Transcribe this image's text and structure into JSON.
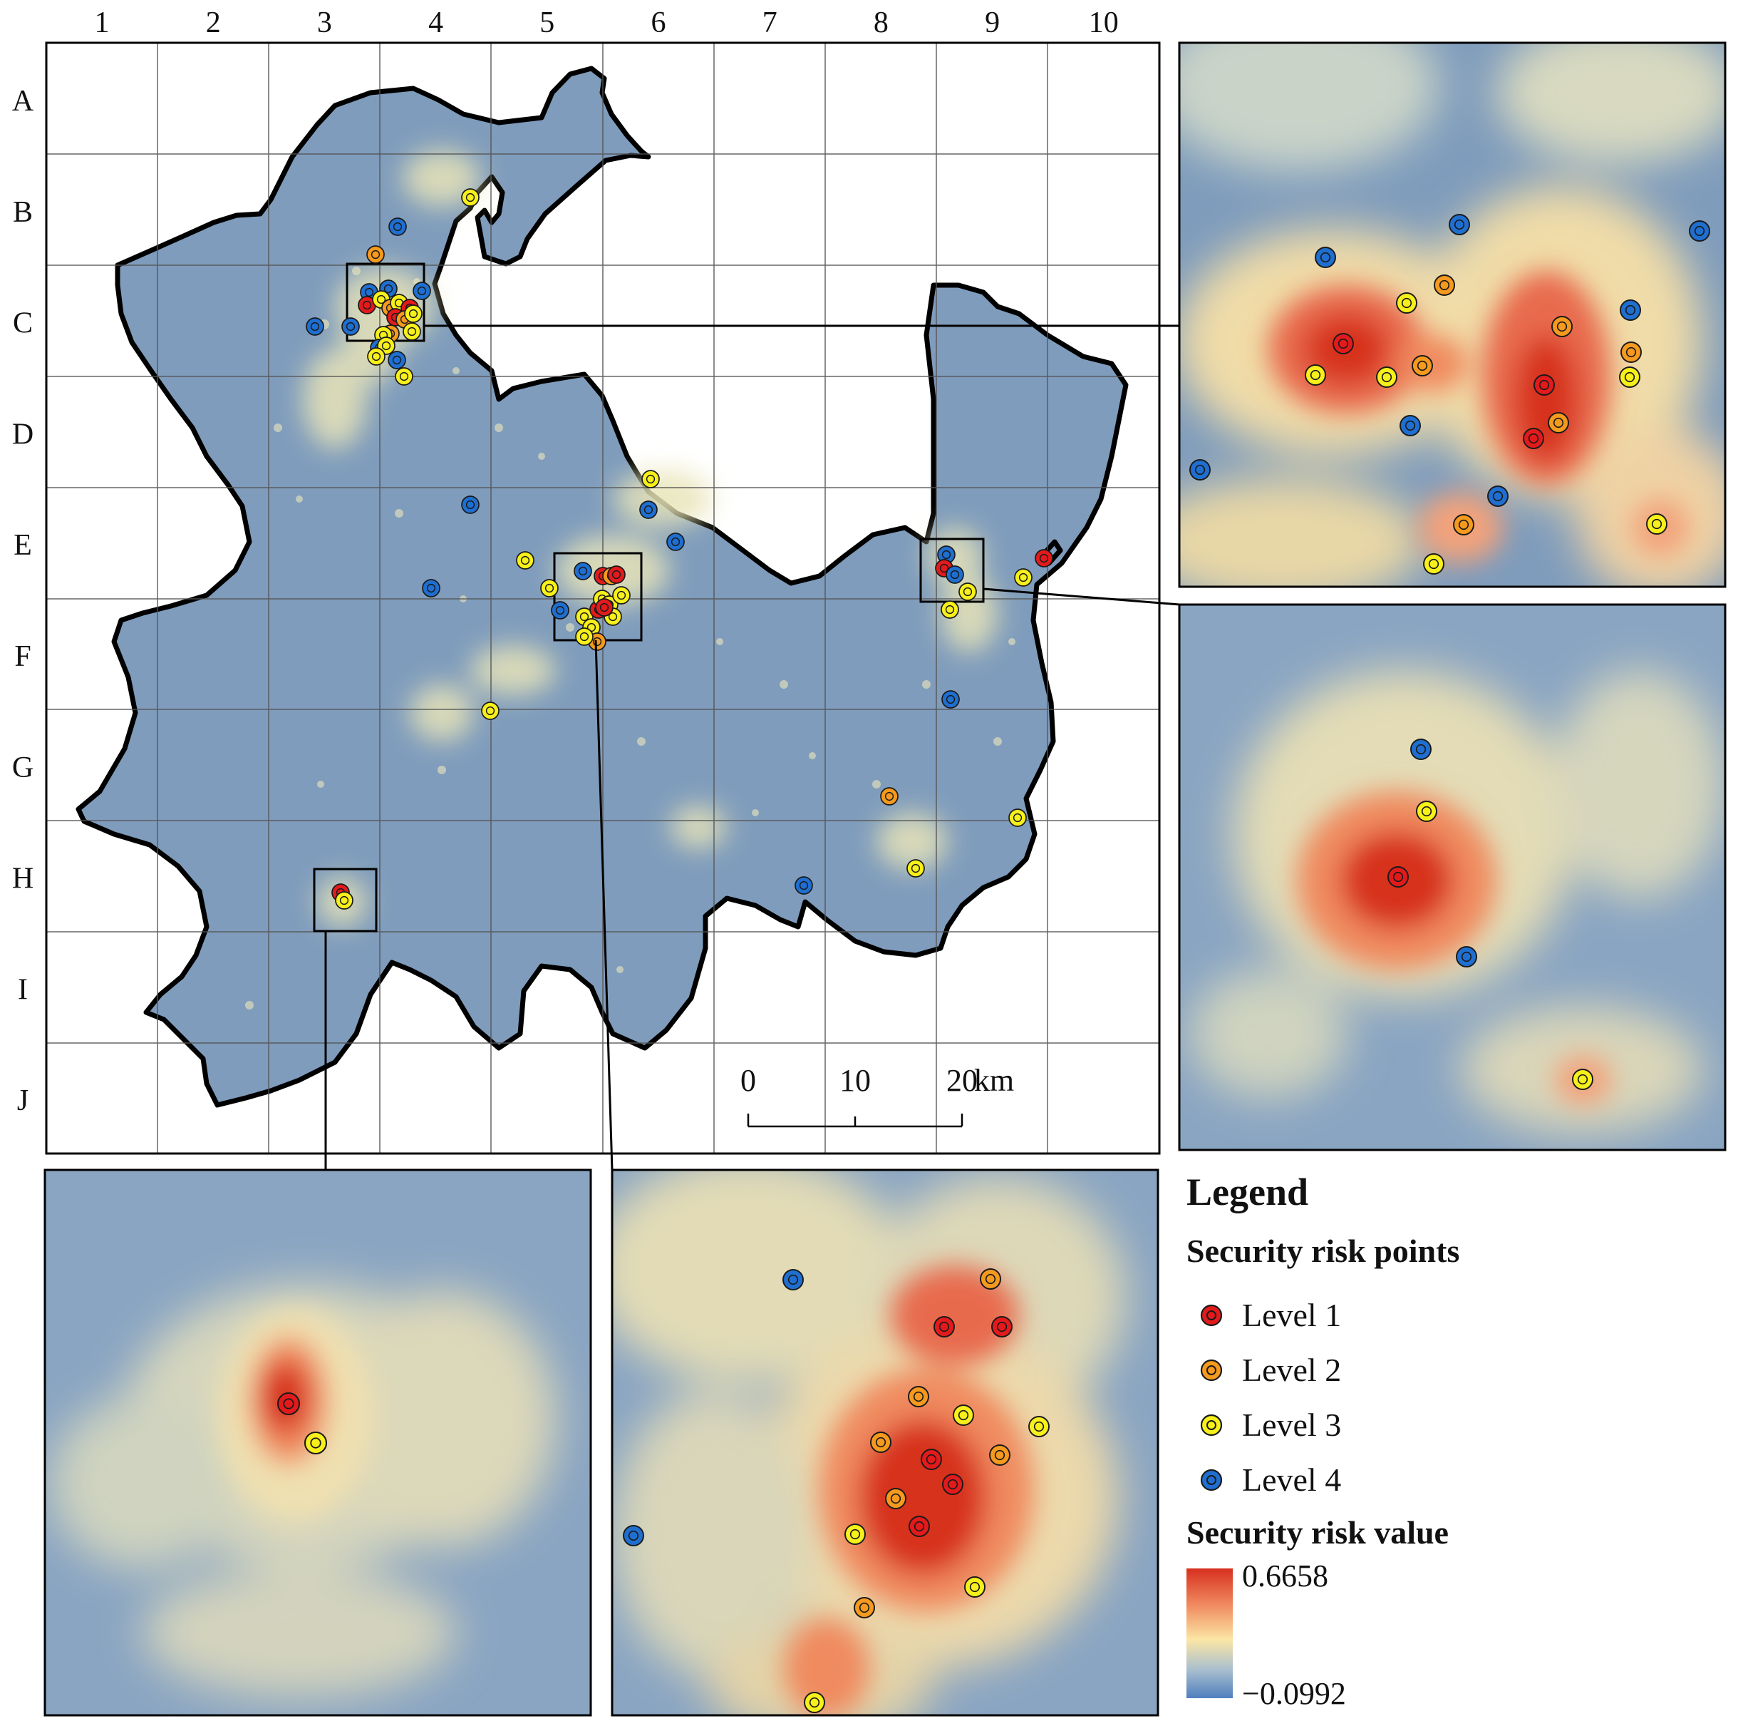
{
  "grid": {
    "columns": [
      "1",
      "2",
      "3",
      "4",
      "5",
      "6",
      "7",
      "8",
      "9",
      "10"
    ],
    "rows": [
      "A",
      "B",
      "C",
      "D",
      "E",
      "F",
      "G",
      "H",
      "I",
      "J"
    ]
  },
  "scale_bar": {
    "ticks": [
      "0",
      "10",
      "20"
    ],
    "unit": "km"
  },
  "legend": {
    "title": "Legend",
    "points_heading": "Security risk points",
    "levels": [
      {
        "label": "Level 1",
        "color": "#e31a1c"
      },
      {
        "label": "Level 2",
        "color": "#f59a1e"
      },
      {
        "label": "Level 3",
        "color": "#f7f01a"
      },
      {
        "label": "Level 4",
        "color": "#1f6fd1"
      }
    ],
    "value_heading": "Security risk value",
    "value_max": "0.6658",
    "value_min": "−0.0992",
    "ramp_colors": [
      "#d7301f",
      "#f08a5f",
      "#fbe6a6",
      "#a9bfcf",
      "#4f7fbe"
    ]
  },
  "colors": {
    "background_raster": "#7f9cbc",
    "urban_low": "#e8e4b8",
    "boundary": "#000000"
  }
}
